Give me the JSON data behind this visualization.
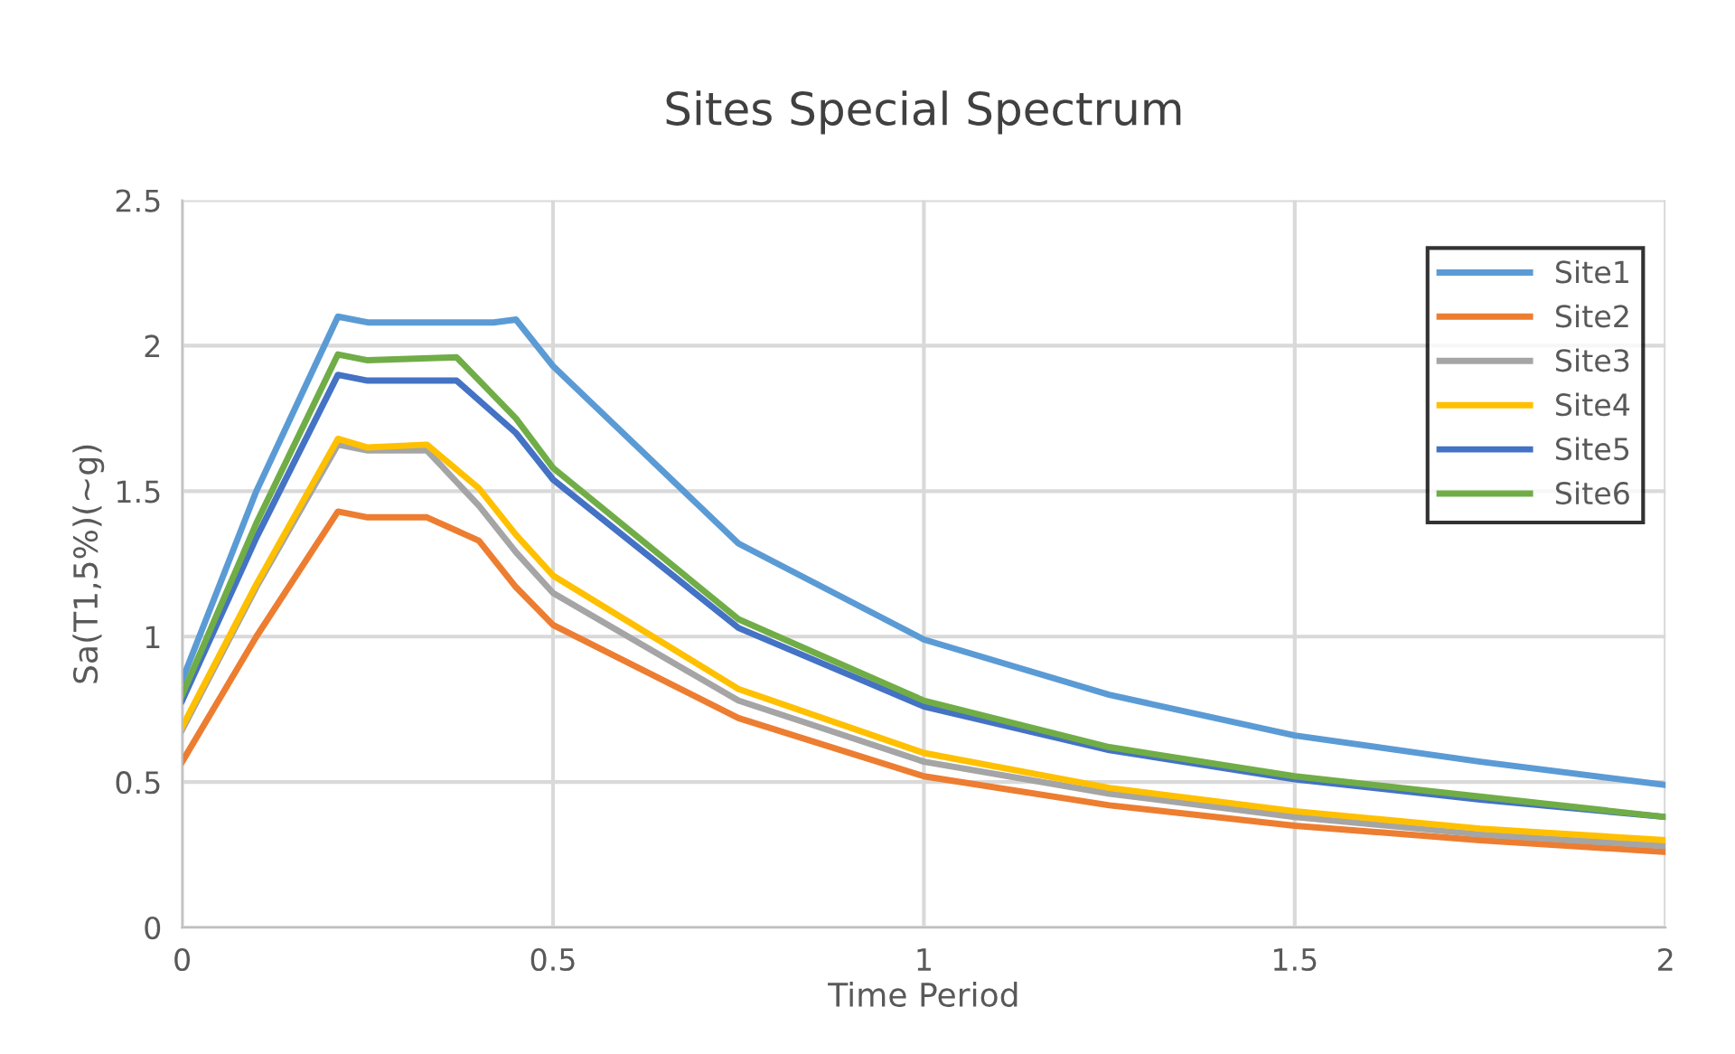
{
  "chart_data": {
    "type": "line",
    "title": "Sites Special Spectrum",
    "xlabel": "Time Period",
    "ylabel": "Sa(T1,5%)(~g)",
    "xlim": [
      0,
      2
    ],
    "xticks": [
      0,
      0.5,
      1,
      1.5,
      2
    ],
    "ylim": [
      0,
      2.5
    ],
    "yticks": [
      0,
      0.5,
      1,
      1.5,
      2,
      2.5
    ],
    "grid": true,
    "legend": "top right",
    "marker": "none",
    "series": [
      {
        "name": "Site1",
        "color": "#5b9bd5",
        "x": [
          0,
          0.1,
          0.21,
          0.25,
          0.35,
          0.42,
          0.45,
          0.5,
          0.75,
          1.0,
          1.25,
          1.5,
          1.75,
          2.0
        ],
        "values": [
          0.85,
          1.5,
          2.1,
          2.08,
          2.08,
          2.08,
          2.09,
          1.93,
          1.32,
          0.99,
          0.8,
          0.66,
          0.57,
          0.49
        ]
      },
      {
        "name": "Site2",
        "color": "#ed7d31",
        "x": [
          0,
          0.1,
          0.21,
          0.25,
          0.33,
          0.4,
          0.45,
          0.5,
          0.75,
          1.0,
          1.25,
          1.5,
          1.75,
          2.0
        ],
        "values": [
          0.57,
          1.0,
          1.43,
          1.41,
          1.41,
          1.33,
          1.17,
          1.04,
          0.72,
          0.52,
          0.42,
          0.35,
          0.3,
          0.26
        ]
      },
      {
        "name": "Site3",
        "color": "#a5a5a5",
        "x": [
          0,
          0.1,
          0.21,
          0.25,
          0.33,
          0.4,
          0.45,
          0.5,
          0.75,
          1.0,
          1.25,
          1.5,
          1.75,
          2.0
        ],
        "values": [
          0.68,
          1.17,
          1.66,
          1.64,
          1.64,
          1.45,
          1.29,
          1.15,
          0.78,
          0.57,
          0.46,
          0.38,
          0.32,
          0.28
        ]
      },
      {
        "name": "Site4",
        "color": "#ffc000",
        "x": [
          0,
          0.1,
          0.21,
          0.25,
          0.33,
          0.4,
          0.45,
          0.5,
          0.75,
          1.0,
          1.25,
          1.5,
          1.75,
          2.0
        ],
        "values": [
          0.69,
          1.18,
          1.68,
          1.65,
          1.66,
          1.51,
          1.35,
          1.21,
          0.82,
          0.6,
          0.48,
          0.4,
          0.34,
          0.3
        ]
      },
      {
        "name": "Site5",
        "color": "#4472c4",
        "x": [
          0,
          0.1,
          0.21,
          0.25,
          0.37,
          0.45,
          0.5,
          0.75,
          1.0,
          1.25,
          1.5,
          1.75,
          2.0
        ],
        "values": [
          0.78,
          1.34,
          1.9,
          1.88,
          1.88,
          1.7,
          1.54,
          1.03,
          0.76,
          0.61,
          0.51,
          0.44,
          0.38
        ]
      },
      {
        "name": "Site6",
        "color": "#70ad47",
        "x": [
          0,
          0.1,
          0.21,
          0.25,
          0.37,
          0.45,
          0.5,
          0.75,
          1.0,
          1.25,
          1.5,
          1.75,
          2.0
        ],
        "values": [
          0.8,
          1.39,
          1.97,
          1.95,
          1.96,
          1.75,
          1.58,
          1.06,
          0.78,
          0.62,
          0.52,
          0.45,
          0.38
        ]
      }
    ]
  }
}
